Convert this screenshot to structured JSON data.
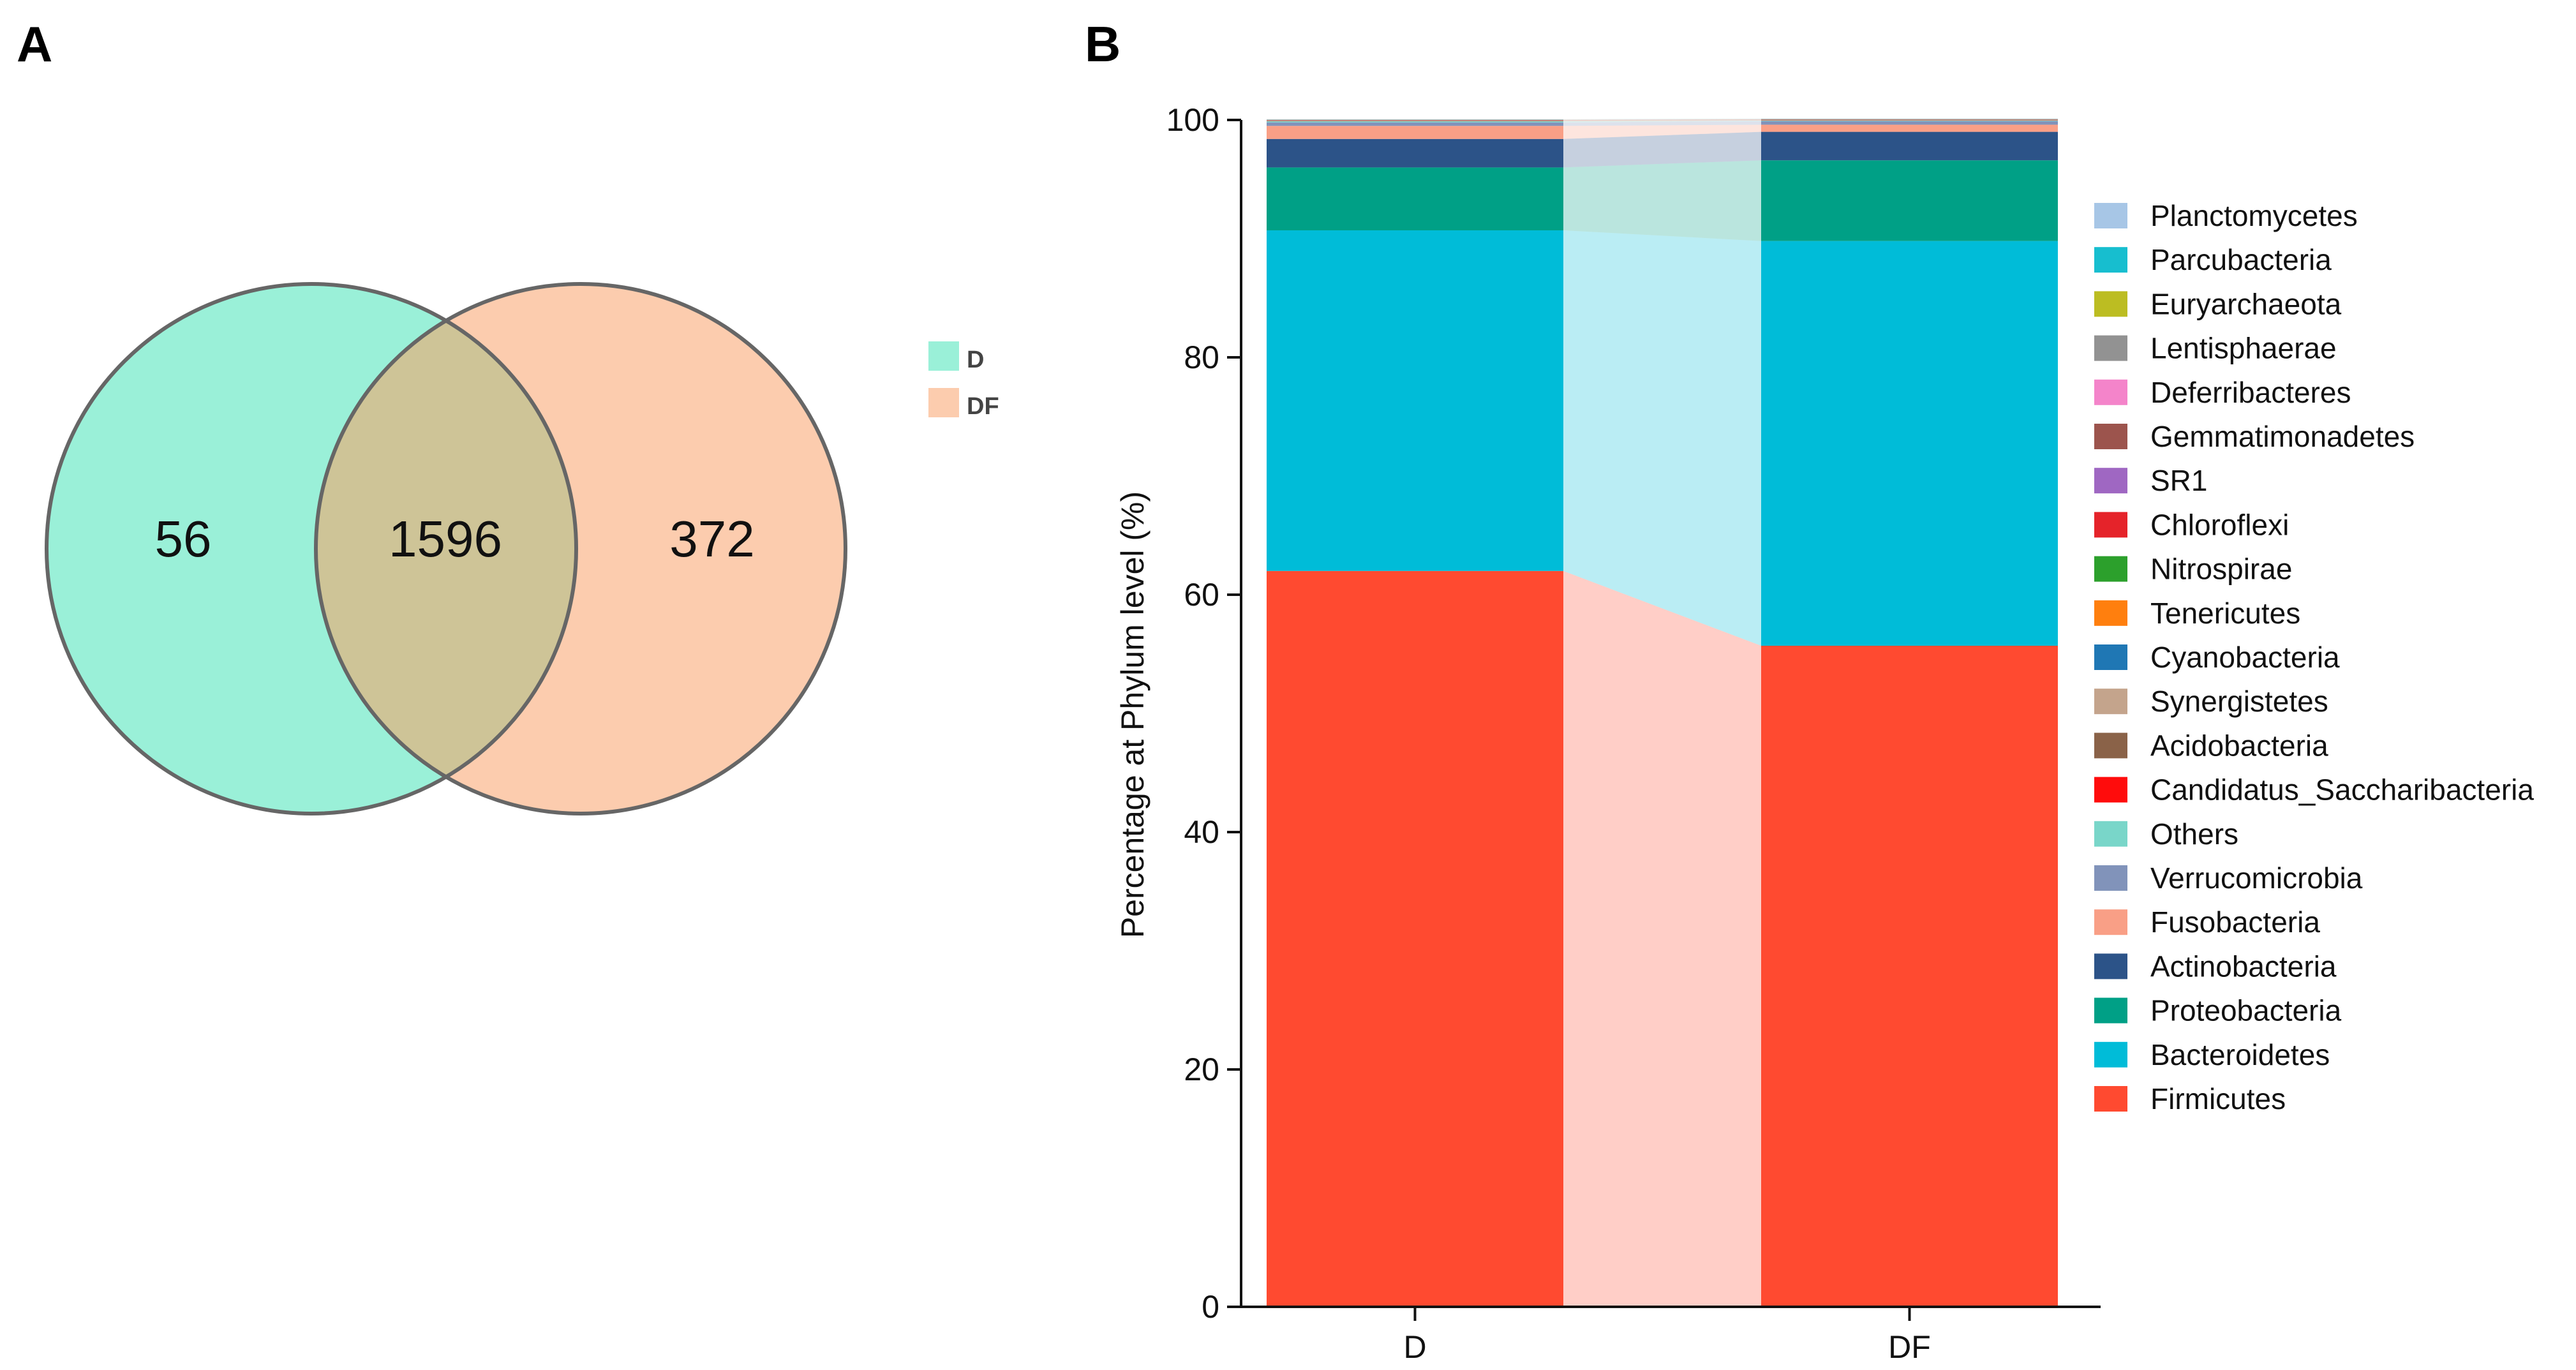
{
  "panels": {
    "a_label": "A",
    "b_label": "B"
  },
  "colors": {
    "venn_d": "#9af0d8",
    "venn_df": "#fcccae",
    "venn_overlap": "#cec497",
    "venn_stroke": "#666666"
  },
  "chart_data": [
    {
      "type": "venn",
      "sets": [
        {
          "name": "D",
          "unique_count": "56",
          "color": "#9af0d8"
        },
        {
          "name": "DF",
          "unique_count": "372",
          "color": "#fcccae"
        }
      ],
      "intersection_count": "1596",
      "legend": [
        "D",
        "DF"
      ]
    },
    {
      "type": "bar",
      "stacked": true,
      "title": "",
      "xlabel": "",
      "ylabel": "Percentage at Phylum level (%)",
      "ylim": [
        0,
        100
      ],
      "yticks": [
        "0",
        "20",
        "40",
        "60",
        "80",
        "100"
      ],
      "categories": [
        "D",
        "DF"
      ],
      "series": [
        {
          "name": "Firmicutes",
          "color": "#ff4a30",
          "values": [
            62.0,
            55.7
          ]
        },
        {
          "name": "Bacteroidetes",
          "color": "#00bcd8",
          "values": [
            28.7,
            34.1
          ]
        },
        {
          "name": "Proteobacteria",
          "color": "#00a086",
          "values": [
            5.3,
            6.8
          ]
        },
        {
          "name": "Actinobacteria",
          "color": "#2c5388",
          "values": [
            2.4,
            2.4
          ]
        },
        {
          "name": "Fusobacteria",
          "color": "#f99f86",
          "values": [
            1.1,
            0.6
          ]
        },
        {
          "name": "Verrucomicrobia",
          "color": "#8193ba",
          "values": [
            0.3,
            0.3
          ]
        },
        {
          "name": "Others",
          "color": "#79d6c9",
          "values": [
            0.1,
            0.05
          ]
        },
        {
          "name": "Candidatus_Saccharibacteria",
          "color": "#ff0c0c",
          "values": [
            0.02,
            0.02
          ]
        },
        {
          "name": "Acidobacteria",
          "color": "#8a6248",
          "values": [
            0.02,
            0.02
          ]
        },
        {
          "name": "Synergistetes",
          "color": "#c4a48c",
          "values": [
            0.01,
            0.01
          ]
        },
        {
          "name": "Cyanobacteria",
          "color": "#1f77b4",
          "values": [
            0.01,
            0.01
          ]
        },
        {
          "name": "Tenericutes",
          "color": "#ff7f0e",
          "values": [
            0.01,
            0.01
          ]
        },
        {
          "name": "Nitrospirae",
          "color": "#2ca02c",
          "values": [
            0.01,
            0.01
          ]
        },
        {
          "name": "Chloroflexi",
          "color": "#e5232a",
          "values": [
            0.01,
            0.01
          ]
        },
        {
          "name": "SR1",
          "color": "#9f67c2",
          "values": [
            0.01,
            0.01
          ]
        },
        {
          "name": "Gemmatimonadetes",
          "color": "#9c544d",
          "values": [
            0.01,
            0.01
          ]
        },
        {
          "name": "Deferribacteres",
          "color": "#f484ca",
          "values": [
            0.01,
            0.01
          ]
        },
        {
          "name": "Lentisphaerae",
          "color": "#929292",
          "values": [
            0.01,
            0.01
          ]
        },
        {
          "name": "Euryarchaeota",
          "color": "#bcbd22",
          "values": [
            0.01,
            0.01
          ]
        },
        {
          "name": "Parcubacteria",
          "color": "#17becf",
          "values": [
            0.01,
            0.01
          ]
        },
        {
          "name": "Planctomycetes",
          "color": "#a7c6e6",
          "values": [
            0.01,
            0.01
          ]
        }
      ],
      "legend_order": [
        "Planctomycetes",
        "Parcubacteria",
        "Euryarchaeota",
        "Lentisphaerae",
        "Deferribacteres",
        "Gemmatimonadetes",
        "SR1",
        "Chloroflexi",
        "Nitrospirae",
        "Tenericutes",
        "Cyanobacteria",
        "Synergistetes",
        "Acidobacteria",
        "Candidatus_Saccharibacteria",
        "Others",
        "Verrucomicrobia",
        "Fusobacteria",
        "Actinobacteria",
        "Proteobacteria",
        "Bacteroidetes",
        "Firmicutes"
      ],
      "legend_position": "right"
    }
  ]
}
